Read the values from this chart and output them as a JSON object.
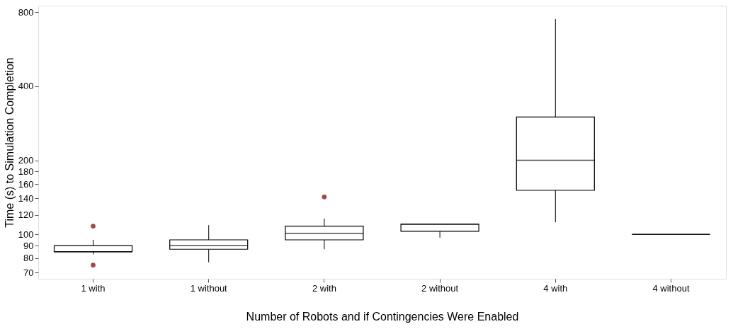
{
  "chart_data": {
    "type": "box",
    "xlabel": "Number of Robots and if Contingencies Were Enabled",
    "ylabel": "Time (s) to Simulation Completion",
    "categories": [
      "1 with",
      "1 without",
      "2 with",
      "2 without",
      "4 with",
      "4 without"
    ],
    "boxes": [
      {
        "low": 83,
        "q1": 85,
        "median": 85,
        "q3": 90,
        "high": 95,
        "outliers": [
          108,
          75
        ]
      },
      {
        "low": 77,
        "q1": 87,
        "median": 90,
        "q3": 95,
        "high": 109
      },
      {
        "low": 87,
        "q1": 95,
        "median": 101,
        "q3": 108,
        "high": 116,
        "outliers": [
          142
        ]
      },
      {
        "low": 97,
        "q1": 103,
        "median": 110,
        "q3": 110,
        "high": 110
      },
      {
        "low": 112,
        "q1": 151,
        "median": 200,
        "q3": 300,
        "high": 750
      },
      {
        "low": 100,
        "q1": 100,
        "median": 100,
        "q3": 100,
        "high": 100
      }
    ],
    "log": true,
    "ylim": [
      66,
      850
    ],
    "yticks": [
      70,
      80,
      90,
      100,
      120,
      140,
      160,
      180,
      200,
      400,
      800
    ],
    "grid": false
  }
}
